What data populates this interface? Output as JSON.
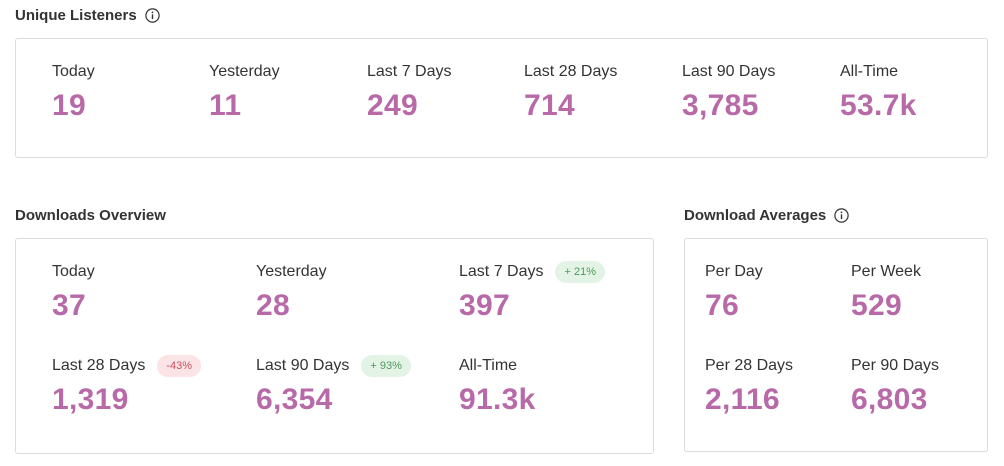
{
  "unique_listeners": {
    "title": "Unique Listeners",
    "info_icon": "info-icon",
    "metrics": [
      {
        "label": "Today",
        "value": "19"
      },
      {
        "label": "Yesterday",
        "value": "11"
      },
      {
        "label": "Last 7 Days",
        "value": "249"
      },
      {
        "label": "Last 28 Days",
        "value": "714"
      },
      {
        "label": "Last 90 Days",
        "value": "3,785"
      },
      {
        "label": "All-Time",
        "value": "53.7k"
      }
    ]
  },
  "downloads_overview": {
    "title": "Downloads Overview",
    "metrics": [
      {
        "label": "Today",
        "value": "37",
        "badge": ""
      },
      {
        "label": "Yesterday",
        "value": "28",
        "badge": ""
      },
      {
        "label": "Last 7 Days",
        "value": "397",
        "badge": "+ 21%",
        "badge_type": "up"
      },
      {
        "label": "Last 28 Days",
        "value": "1,319",
        "badge": "-43%",
        "badge_type": "down"
      },
      {
        "label": "Last 90 Days",
        "value": "6,354",
        "badge": "+ 93%",
        "badge_type": "up"
      },
      {
        "label": "All-Time",
        "value": "91.3k",
        "badge": ""
      }
    ]
  },
  "download_averages": {
    "title": "Download Averages",
    "info_icon": "info-icon",
    "metrics": [
      {
        "label": "Per Day",
        "value": "76"
      },
      {
        "label": "Per Week",
        "value": "529"
      },
      {
        "label": "Per 28 Days",
        "value": "2,116"
      },
      {
        "label": "Per 90 Days",
        "value": "6,803"
      }
    ]
  },
  "colors": {
    "accent": "#b86aa8",
    "badge_up_bg": "#e3f4e6",
    "badge_up_text": "#4b9a5c",
    "badge_down_bg": "#fbe3e6",
    "badge_down_text": "#c8505e",
    "border": "#dcdcdc"
  }
}
